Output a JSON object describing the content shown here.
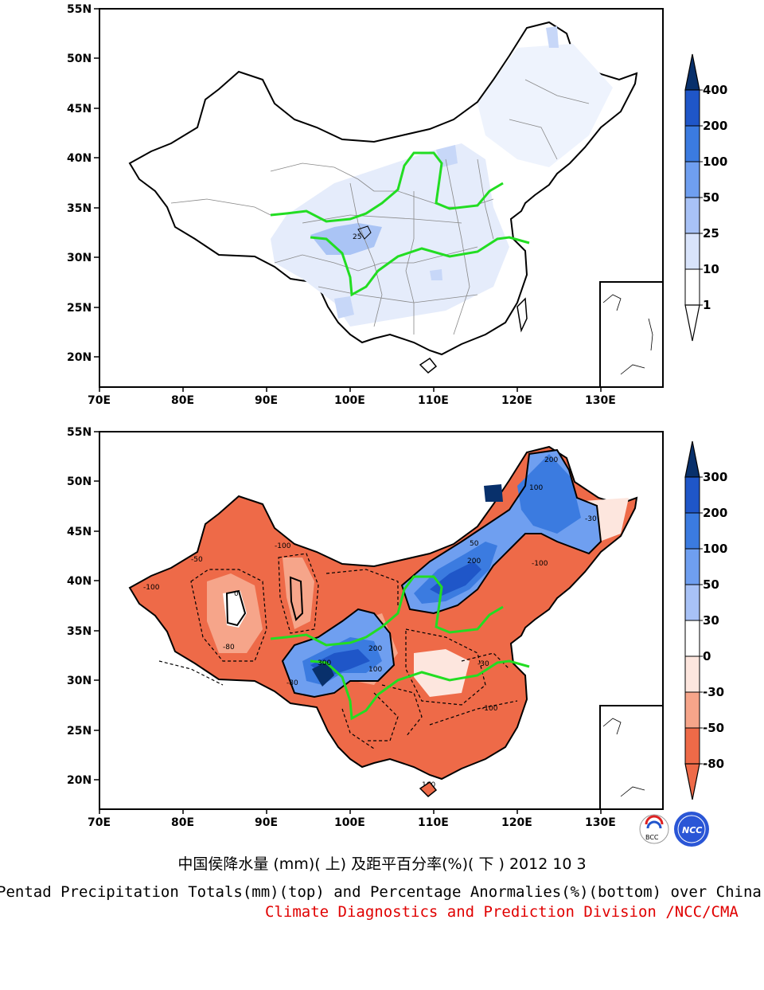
{
  "top_map": {
    "lat_labels": [
      "55N",
      "50N",
      "45N",
      "40N",
      "35N",
      "30N",
      "25N",
      "20N"
    ],
    "lon_labels": [
      "70E",
      "80E",
      "90E",
      "100E",
      "110E",
      "120E",
      "130E"
    ],
    "contour_label": "25",
    "colorbar": {
      "levels": [
        "400",
        "200",
        "100",
        "50",
        "25",
        "10",
        "1"
      ],
      "colors": [
        "#08306b",
        "#1f56c8",
        "#3b7be0",
        "#6f9ff0",
        "#a8c2f6",
        "#d9e4fb",
        "#ffffff"
      ]
    }
  },
  "bottom_map": {
    "lat_labels": [
      "55N",
      "50N",
      "45N",
      "40N",
      "35N",
      "30N",
      "25N",
      "20N"
    ],
    "lon_labels": [
      "70E",
      "80E",
      "90E",
      "100E",
      "110E",
      "120E",
      "130E"
    ],
    "contour_labels": [
      "-100",
      "-50",
      "-80",
      "0",
      "200",
      "300",
      "100",
      "50",
      "-30"
    ],
    "colorbar": {
      "levels": [
        "300",
        "200",
        "100",
        "50",
        "30",
        "0",
        "-30",
        "-50",
        "-80"
      ],
      "colors": [
        "#08306b",
        "#1f56c8",
        "#3b7be0",
        "#6f9ff0",
        "#a8c2f6",
        "#ffffff",
        "#fde6de",
        "#f6a58a",
        "#ee6a48"
      ]
    }
  },
  "logos": [
    "BCC",
    "NCC"
  ],
  "caption": {
    "chinese": "中国侯降水量 (mm)( 上) 及距平百分率(%)( 下 ) 2012 10 3",
    "english": "Pentad Precipitation Totals(mm)(top) and Percentage Anormalies(%)(bottom) over China",
    "credit": "Climate Diagnostics and Prediction Division /NCC/CMA"
  }
}
